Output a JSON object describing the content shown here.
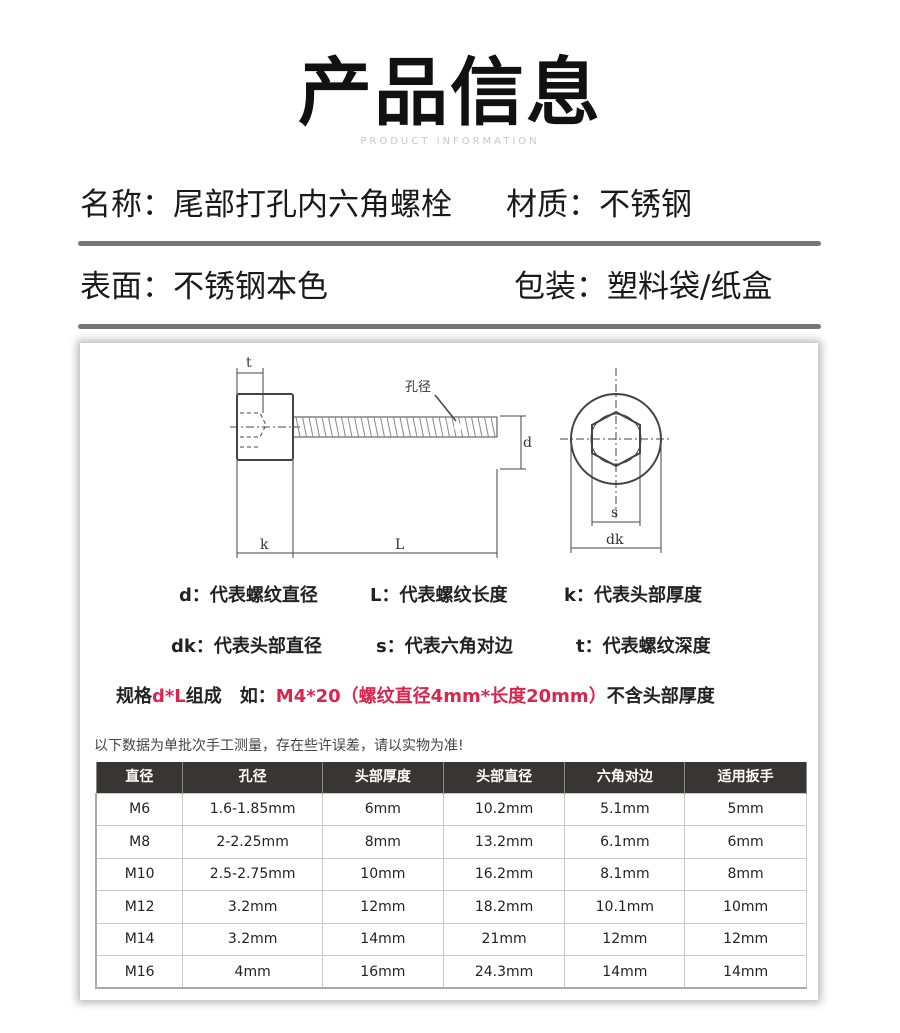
{
  "header": {
    "title": "产品信息",
    "subtitle": "PRODUCT INFORMATION"
  },
  "info": {
    "name": "名称：尾部打孔内六角螺栓",
    "material": "材质：不锈钢",
    "surface": "表面：不锈钢本色",
    "packaging": "包装：塑料袋/纸盒"
  },
  "diagram": {
    "labels": {
      "t": "t",
      "hole": "孔径",
      "d": "d",
      "k": "k",
      "L": "L",
      "s": "s",
      "dk": "dk"
    }
  },
  "legend": {
    "d": "d：代表螺纹直径",
    "L": "L：代表螺纹长度",
    "k": "k：代表头部厚度",
    "dk": "dk：代表头部直径",
    "s": "s：代表六角对边",
    "t": "t：代表螺纹深度"
  },
  "spec": {
    "prefix": "规格",
    "formula": "d*L",
    "suffix": "组成　如：",
    "example": "M4*20（螺纹直径4mm*长度20mm）",
    "tail": "不含头部厚度",
    "accent_color": "#d9264f"
  },
  "note": "以下数据为单批次手工测量，存在些许误差，请以实物为准!",
  "table": {
    "headers": [
      "直径",
      "孔径",
      "头部厚度",
      "头部直径",
      "六角对边",
      "适用扳手"
    ],
    "rows": [
      [
        "M6",
        "1.6-1.85mm",
        "6mm",
        "10.2mm",
        "5.1mm",
        "5mm"
      ],
      [
        "M8",
        "2-2.25mm",
        "8mm",
        "13.2mm",
        "6.1mm",
        "6mm"
      ],
      [
        "M10",
        "2.5-2.75mm",
        "10mm",
        "16.2mm",
        "8.1mm",
        "8mm"
      ],
      [
        "M12",
        "3.2mm",
        "12mm",
        "18.2mm",
        "10.1mm",
        "10mm"
      ],
      [
        "M14",
        "3.2mm",
        "14mm",
        "21mm",
        "12mm",
        "12mm"
      ],
      [
        "M16",
        "4mm",
        "16mm",
        "24.3mm",
        "14mm",
        "14mm"
      ]
    ]
  }
}
